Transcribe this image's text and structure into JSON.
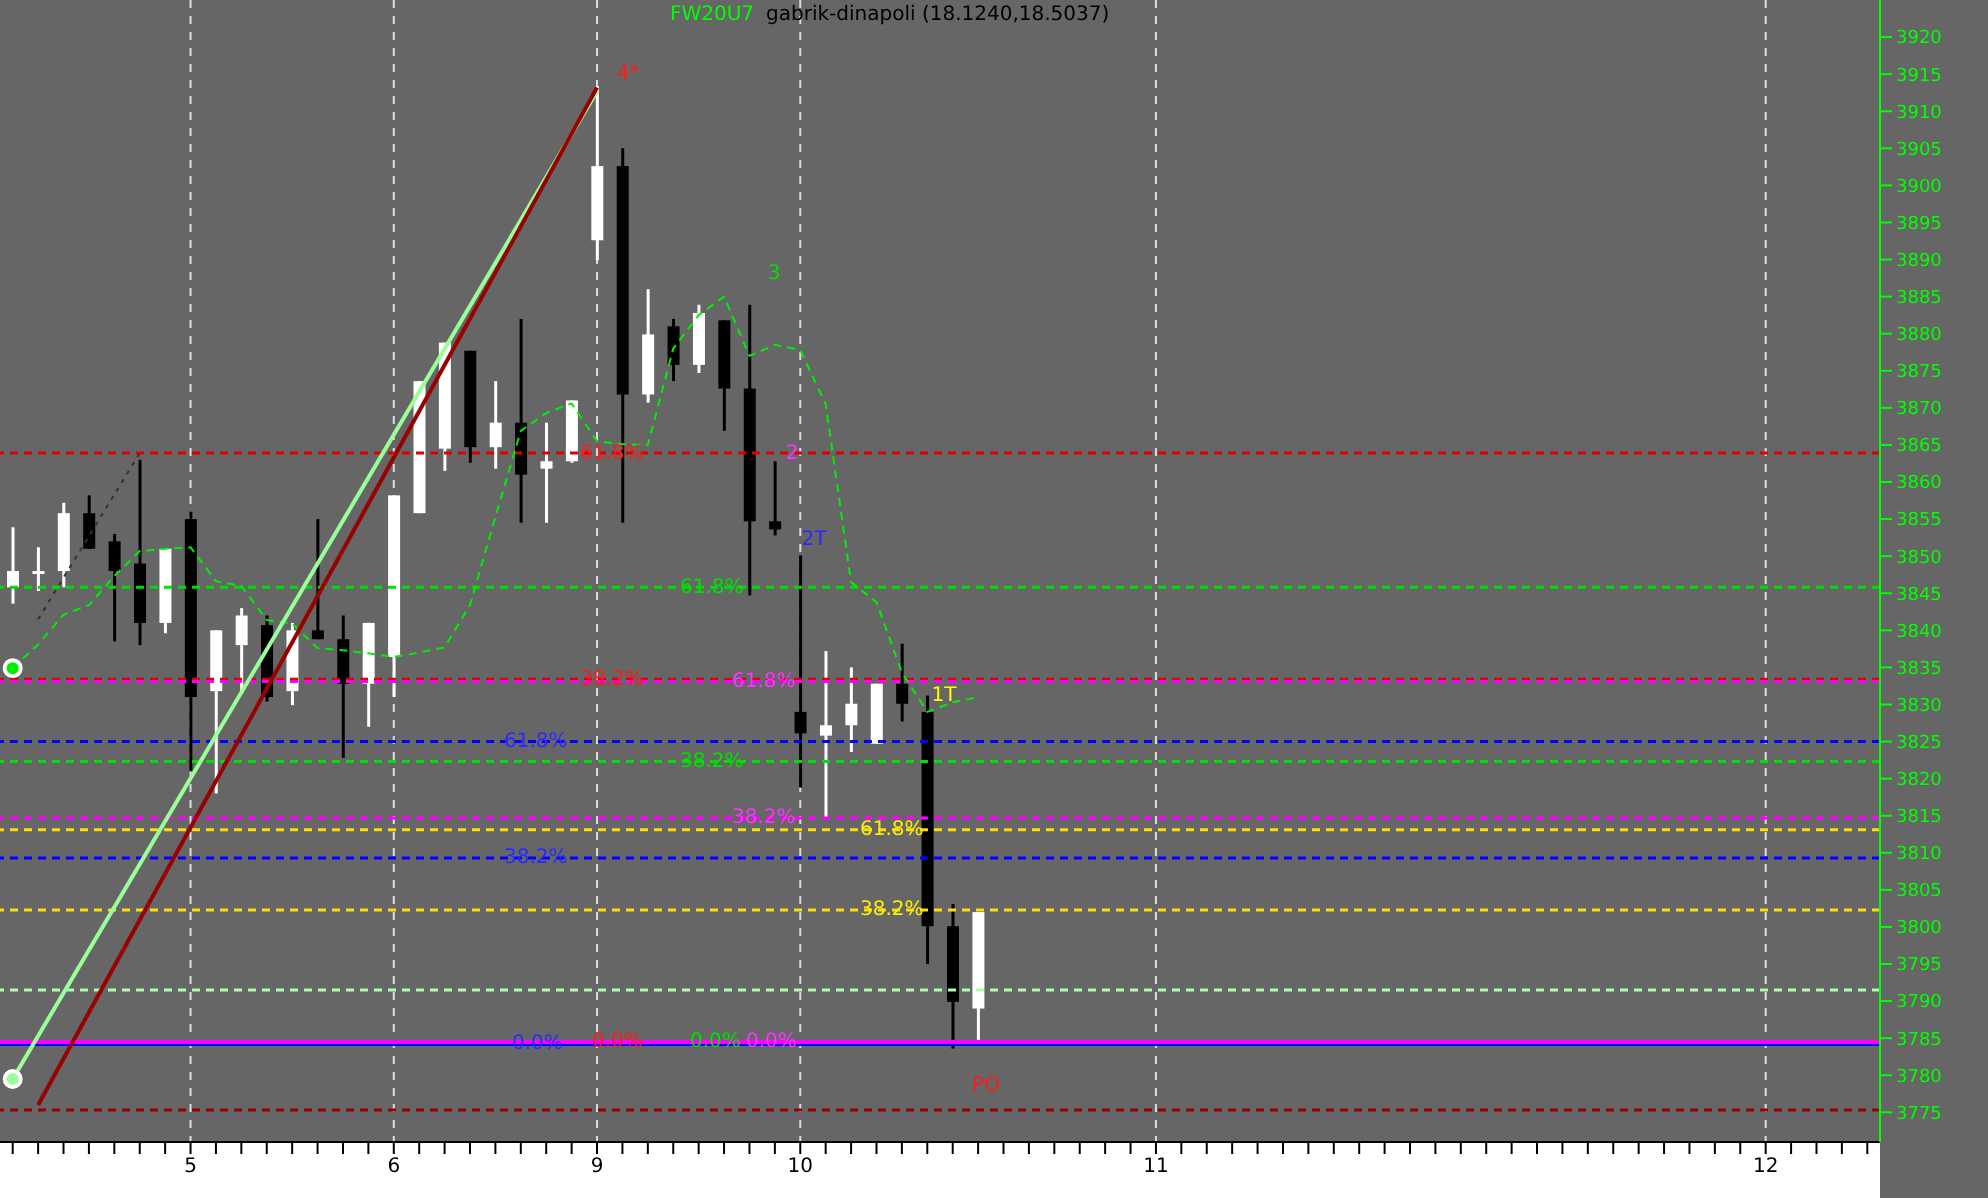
{
  "chart_data": {
    "type": "candlestick",
    "title": "FW20U7",
    "subtitle": "gabrik-dinapoli (18.1240,18.5037)",
    "categories": [
      null,
      null,
      null,
      null,
      null,
      null,
      null,
      "5",
      null,
      null,
      null,
      null,
      null,
      null,
      null,
      "6",
      null,
      null,
      null,
      null,
      null,
      null,
      null,
      "9",
      null,
      null,
      null,
      null,
      null,
      null,
      null,
      "10",
      null,
      null,
      null,
      null,
      null,
      null,
      null,
      null,
      null,
      null,
      null,
      null,
      null,
      "11",
      null,
      null,
      null,
      null,
      null,
      null,
      null,
      null,
      null,
      null,
      null,
      null,
      null,
      null,
      null,
      null,
      null,
      null,
      null,
      null,
      null,
      null,
      null,
      "12",
      null,
      null,
      null,
      null
    ],
    "ohlc": [
      [
        3845.8,
        3853.9,
        3843.6,
        3848
      ],
      [
        3847.8,
        3851.2,
        3845.3,
        3848
      ],
      [
        3848,
        3857.2,
        3845.8,
        3855.8
      ],
      [
        3855.8,
        3858.2,
        3851,
        3851
      ],
      [
        3852,
        3853,
        3838.5,
        3848
      ],
      [
        3849,
        3863,
        3838,
        3841
      ],
      [
        3841,
        3851,
        3839.6,
        3851
      ],
      [
        3855,
        3856,
        3821,
        3831
      ],
      [
        3831.8,
        3840,
        3818,
        3840
      ],
      [
        3838,
        3843,
        3831.5,
        3842
      ],
      [
        3840.7,
        3842,
        3830.4,
        3831
      ],
      [
        3831.8,
        3841,
        3829.9,
        3840
      ],
      [
        3840,
        3855,
        3838.8,
        3838.8
      ],
      [
        3838.8,
        3842,
        3822.8,
        3832.8
      ],
      [
        3832.8,
        3841,
        3827,
        3841
      ],
      [
        3836.4,
        3858.2,
        3831,
        3858.2
      ],
      [
        3855.8,
        3873.6,
        3855.8,
        3873.6
      ],
      [
        3864.5,
        3878.8,
        3861.5,
        3878.8
      ],
      [
        3877.7,
        3877.7,
        3862.6,
        3864.7
      ],
      [
        3864.7,
        3873.6,
        3861.8,
        3868
      ],
      [
        3868,
        3882,
        3854.5,
        3861
      ],
      [
        3861.8,
        3868,
        3854.5,
        3862.8
      ],
      [
        3862.8,
        3871,
        3862.6,
        3871
      ],
      [
        3892.6,
        3913.4,
        3889.9,
        3902.6
      ],
      [
        3902.6,
        3905,
        3854.5,
        3871.8
      ],
      [
        3871.8,
        3886,
        3870.7,
        3879.9
      ],
      [
        3881,
        3882,
        3873.6,
        3875.8
      ],
      [
        3875.8,
        3883.9,
        3874.7,
        3882.8
      ],
      [
        3881.8,
        3881.8,
        3866.9,
        3872.6
      ],
      [
        3872.6,
        3883.9,
        3844.7,
        3854.7
      ],
      [
        3854.7,
        3862.8,
        3852.8,
        3853.6
      ],
      [
        3829,
        3850.1,
        3818.8,
        3826.1
      ],
      [
        3825.8,
        3837.2,
        3814.7,
        3827.2
      ],
      [
        3827.2,
        3835,
        3823.6,
        3830.1
      ],
      [
        3824.7,
        3832.8,
        3824.7,
        3832.8
      ],
      [
        3832.8,
        3838.2,
        3827.7,
        3830.1
      ],
      [
        3829,
        3831.2,
        3795,
        3800.1
      ],
      [
        3800.1,
        3803.1,
        3783.6,
        3789.9
      ],
      [
        3789,
        3802,
        3784.7,
        3802
      ],
      null,
      null,
      null,
      null,
      null,
      null,
      null,
      null,
      null,
      null,
      null,
      null,
      null,
      null,
      null,
      null,
      null,
      null,
      null,
      null,
      null,
      null,
      null,
      null,
      null,
      null,
      null,
      null,
      null,
      null,
      null,
      null,
      null,
      null,
      null
    ],
    "colors": [
      "#ffffff",
      "#ffffff",
      "#ffffff",
      "#000000",
      "#000000",
      "#000000",
      "#ffffff",
      "#000000",
      "#ffffff",
      "#ffffff",
      "#000000",
      "#ffffff",
      "#000000",
      "#000000",
      "#ffffff",
      "#ffffff",
      "#ffffff",
      "#ffffff",
      "#000000",
      "#ffffff",
      "#000000",
      "#ffffff",
      "#ffffff",
      "#ffffff",
      "#000000",
      "#ffffff",
      "#000000",
      "#ffffff",
      "#000000",
      "#000000",
      "#000000",
      "#000000",
      "#ffffff",
      "#ffffff",
      "#ffffff",
      "#000000",
      "#000000",
      "#000000",
      "#ffffff",
      null,
      null,
      null,
      null,
      null,
      null,
      null,
      null,
      null,
      null,
      null,
      null,
      null,
      null,
      null,
      null,
      null,
      null,
      null,
      null,
      null,
      null,
      null,
      null,
      null,
      null,
      null,
      null,
      null,
      null,
      null,
      null,
      null,
      null,
      null
    ],
    "series": [
      {
        "type": "line",
        "color": "#00ee00",
        "line_style": "dashed",
        "values": [
          3834.9,
          3838.1,
          3842.1,
          3843.4,
          3847.3,
          3850.7,
          3851,
          3851.2,
          3846.6,
          3846,
          3841.4,
          3840.9,
          3837.6,
          3837.3,
          3836.9,
          3836.4,
          3837,
          3837.7,
          3843.4,
          3855.3,
          3866.9,
          3869.3,
          3870.6,
          3865.5,
          3865.1,
          3865,
          3878,
          3882.5,
          3885,
          3877,
          3878.5,
          3877.8,
          3870.5,
          3846.5,
          3843.8,
          3834.3,
          3829,
          3830.3,
          3831,
          null,
          null,
          null,
          null,
          null,
          null,
          null,
          null,
          null,
          null,
          null,
          null,
          null,
          null,
          null,
          null,
          null,
          null,
          null,
          null,
          null,
          null,
          null,
          null,
          null,
          null,
          null,
          null,
          null,
          null,
          null,
          null,
          null,
          null,
          null
        ]
      },
      {
        "type": "line",
        "color": "#99ff99",
        "line_style": "solid",
        "values": [
          3779.5,
          null,
          null,
          null,
          null,
          null,
          null,
          null,
          null,
          null,
          null,
          null,
          null,
          null,
          null,
          null,
          null,
          null,
          null,
          null,
          null,
          null,
          null,
          3912.7,
          null,
          null,
          null,
          null,
          null,
          null,
          null,
          null,
          null,
          null,
          null,
          null,
          null,
          null,
          null,
          null,
          null,
          null,
          null,
          null,
          null,
          null,
          null,
          null,
          null,
          null,
          null,
          null,
          null,
          null,
          null,
          null,
          null,
          null,
          null,
          null,
          null,
          null,
          null,
          null,
          null,
          null,
          null,
          null,
          null,
          null,
          null,
          null,
          null,
          null
        ]
      },
      {
        "type": "line",
        "color": "#990000",
        "line_style": "solid",
        "values": [
          null,
          3776,
          null,
          null,
          null,
          null,
          null,
          null,
          null,
          null,
          null,
          null,
          null,
          null,
          null,
          null,
          null,
          null,
          null,
          null,
          null,
          null,
          null,
          3913.2,
          null,
          null,
          null,
          null,
          null,
          null,
          null,
          null,
          null,
          null,
          null,
          null,
          null,
          null,
          null,
          null,
          null,
          null,
          null,
          null,
          null,
          null,
          null,
          null,
          null,
          null,
          null,
          null,
          null,
          null,
          null,
          null,
          null,
          null,
          null,
          null,
          null,
          null,
          null,
          null,
          null,
          null,
          null,
          null,
          null,
          null,
          null,
          null,
          null,
          null
        ]
      },
      {
        "type": "line",
        "color": "#333333",
        "line_style": "dotted",
        "values": [
          null,
          3841.5,
          null,
          null,
          null,
          3863.9,
          null,
          null,
          null,
          null,
          null,
          null,
          null,
          null,
          null,
          null,
          null,
          null,
          null,
          null,
          null,
          null,
          null,
          null,
          null,
          null,
          null,
          null,
          null,
          null,
          null,
          null,
          null,
          null,
          null,
          null,
          null,
          null,
          null,
          null,
          null,
          null,
          null,
          null,
          null,
          null,
          null,
          null,
          null,
          null,
          null,
          null,
          null,
          null,
          null,
          null,
          null,
          null,
          null,
          null,
          null,
          null,
          null,
          null,
          null,
          null,
          null,
          null,
          null,
          null,
          null,
          null,
          null,
          null
        ]
      }
    ],
    "ylim": [
      3771,
      3925
    ],
    "yticks": [
      3775,
      3780,
      3785,
      3790,
      3795,
      3800,
      3805,
      3810,
      3815,
      3820,
      3825,
      3830,
      3835,
      3840,
      3845,
      3850,
      3855,
      3860,
      3865,
      3870,
      3875,
      3880,
      3885,
      3890,
      3895,
      3900,
      3905,
      3910,
      3915,
      3920
    ],
    "grid": "x",
    "ref_lines": [
      {
        "axis": "y",
        "value": 3825,
        "color": "#0000ff",
        "line_style": "dashed"
      },
      {
        "axis": "y",
        "value": 3809.3,
        "color": "#0000ff",
        "line_style": "dashed"
      },
      {
        "axis": "y",
        "value": 3784.2,
        "color": "#0000ff",
        "line_style": "solid"
      },
      {
        "axis": "y",
        "value": 3863.9,
        "color": "#dd0000",
        "line_style": "dashed"
      },
      {
        "axis": "y",
        "value": 3833.4,
        "color": "#dd0000",
        "line_style": "dashed"
      },
      {
        "axis": "y",
        "value": 3845.8,
        "color": "#00dd00",
        "line_style": "dashed"
      },
      {
        "axis": "y",
        "value": 3822.3,
        "color": "#00dd00",
        "line_style": "dashed"
      },
      {
        "axis": "y",
        "value": 3833.1,
        "color": "#ff00ff",
        "line_style": "dashed"
      },
      {
        "axis": "y",
        "value": 3814.7,
        "color": "#ff00ff",
        "line_style": "dashed"
      },
      {
        "axis": "y",
        "value": 3784.5,
        "color": "#ff00ff",
        "line_style": "solid"
      },
      {
        "axis": "y",
        "value": 3813.1,
        "color": "#ffdd00",
        "line_style": "dashed"
      },
      {
        "axis": "y",
        "value": 3802.3,
        "color": "#ffdd00",
        "line_style": "dashed"
      },
      {
        "axis": "y",
        "value": 3791.5,
        "color": "#aaffaa",
        "line_style": "dashed"
      },
      {
        "axis": "y",
        "value": 3775.3,
        "color": "#990000",
        "line_style": "dashed"
      }
    ],
    "annotations": [
      {
        "text": "61.8%",
        "y": 3825
      },
      {
        "text": "38.2%",
        "y": 3809.3
      },
      {
        "text": "0.0%",
        "y": 3784.2
      },
      {
        "text": "61.8%",
        "y": 3863.9
      },
      {
        "text": "38.2%",
        "y": 3833.4
      },
      {
        "text": "0.0%",
        "y": 3784.5
      },
      {
        "text": "61.8%",
        "y": 3845.8
      },
      {
        "text": "38.2%",
        "y": 3822.3
      },
      {
        "text": "0.0%",
        "y": 3784.5
      },
      {
        "text": "61.8%",
        "y": 3833.1
      },
      {
        "text": "38.2%",
        "y": 3814.7
      },
      {
        "text": "0.0%",
        "y": 3784.5
      },
      {
        "text": "61.8%",
        "y": 3813.1
      },
      {
        "text": "38.2%",
        "y": 3802.3
      },
      "4*",
      "3",
      "2",
      "2T",
      "1T",
      "PO"
    ]
  }
}
